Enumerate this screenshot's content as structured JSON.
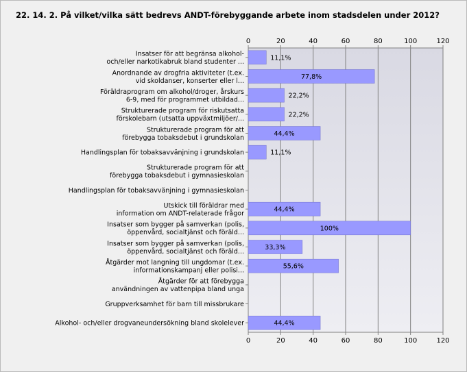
{
  "title": "22. 14. 2. På vilket/vilka sätt bedrevs ANDT-förebyggande arbete inom stadsdelen under 2012?",
  "chart_data": {
    "type": "bar",
    "orientation": "horizontal",
    "xlim": [
      0,
      120
    ],
    "ticks": [
      0,
      20,
      40,
      60,
      80,
      100,
      120
    ],
    "grid": true,
    "bar_color": "#9999ff",
    "categories": [
      [
        "Insatser för att begränsa alkohol-",
        "och/eller narkotikabruk bland studenter ..."
      ],
      [
        "Anordnande av drogfria aktiviteter (t.ex.",
        "vid skoldanser, konserter eller l..."
      ],
      [
        "Föräldraprogram om alkohol/droger, årskurs",
        "6-9, med för programmet utbildad..."
      ],
      [
        "Strukturerade program för riskutsatta",
        "förskolebarn (utsatta uppväxtmiljöer/..."
      ],
      [
        "Strukturerade program för att",
        "förebygga tobaksdebut i grundskolan"
      ],
      [
        "Handlingsplan för tobaksavvänjning i grundskolan"
      ],
      [
        "Strukturerade program för att",
        "förebygga tobaksdebut i gymnasieskolan"
      ],
      [
        "Handlingsplan för tobaksavvänjning i gymnasieskolan"
      ],
      [
        "Utskick till föräldrar med",
        "information om ANDT-relaterade frågor"
      ],
      [
        "Insatser som bygger på samverkan (polis,",
        "öppenvård, socialtjänst och föräld..."
      ],
      [
        "Insatser som bygger på samverkan (polis,",
        "öppenvård, socialtjänst och föräld..."
      ],
      [
        "Åtgärder mot langning till ungdomar (t.ex.",
        "informationskampanj eller polisi..."
      ],
      [
        "Åtgärder för att förebygga",
        "användningen av vattenpipa bland unga"
      ],
      [
        "Gruppverksamhet för barn till missbrukare"
      ],
      [
        "Alkohol- och/eller drogvaneundersökning bland skolelever"
      ]
    ],
    "values": [
      11.1,
      77.8,
      22.2,
      22.2,
      44.4,
      11.1,
      null,
      null,
      44.4,
      100,
      33.3,
      55.6,
      null,
      null,
      44.4
    ],
    "value_labels": [
      "11,1%",
      "77,8%",
      "22,2%",
      "22,2%",
      "44,4%",
      "11,1%",
      "",
      "",
      "44,4%",
      "100%",
      "33,3%",
      "55,6%",
      "",
      "",
      "44,4%"
    ]
  }
}
